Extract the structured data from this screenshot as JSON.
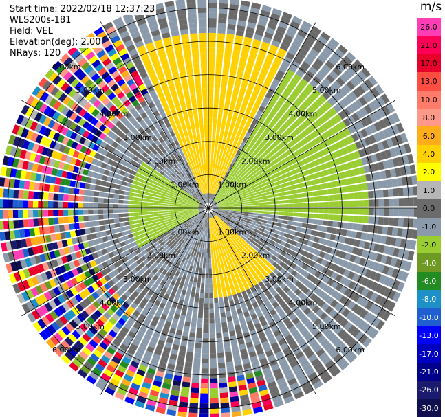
{
  "header": {
    "start_time": "Start time: 2022/02/18 12:37:23",
    "instrument": "WLS200s-181",
    "field": "Field: VEL",
    "elevation": "Elevation(deg): 2.00",
    "nrays": "NRays: 120"
  },
  "chart_data": {
    "type": "heatmap",
    "projection": "polar-ppi",
    "field": "VEL",
    "units": "m/s",
    "n_rays": 120,
    "elevation_deg": 2.0,
    "max_range_km": 6.25,
    "range_rings_km": [
      1.0,
      2.0,
      3.0,
      4.0,
      5.0,
      6.0
    ],
    "ring_labels": [
      "1.00km",
      "2.00km",
      "3.00km",
      "4.00km",
      "5.00km",
      "6.00km"
    ],
    "spoke_count": 12,
    "colorbar": {
      "title": "m/s",
      "bins": [
        {
          "label": "26.0",
          "color": "#ff3eb5"
        },
        {
          "label": "21.0",
          "color": "#ff0057"
        },
        {
          "label": "17.0",
          "color": "#e8002b"
        },
        {
          "label": "13.0",
          "color": "#ff4d41"
        },
        {
          "label": "10.0",
          "color": "#ff7b6a"
        },
        {
          "label": "8.0",
          "color": "#ff9a8a"
        },
        {
          "label": "6.0",
          "color": "#ffad1a"
        },
        {
          "label": "4.0",
          "color": "#ffd100"
        },
        {
          "label": "2.0",
          "color": "#ffff00"
        },
        {
          "label": "1.0",
          "color": "#b6b6b6"
        },
        {
          "label": "0.0",
          "color": "#6b6b6b"
        },
        {
          "label": "-1.0",
          "color": "#8a9aab"
        },
        {
          "label": "-2.0",
          "color": "#9acd32"
        },
        {
          "label": "-4.0",
          "color": "#6e9a23"
        },
        {
          "label": "-6.0",
          "color": "#228b22"
        },
        {
          "label": "-8.0",
          "color": "#1e90c8"
        },
        {
          "label": "-10.0",
          "color": "#1f5fd0"
        },
        {
          "label": "-13.0",
          "color": "#0000ff"
        },
        {
          "label": "-17.0",
          "color": "#0000c0"
        },
        {
          "label": "-21.0",
          "color": "#00008b"
        },
        {
          "label": "-26.0",
          "color": "#1a1a6e"
        },
        {
          "label": "-30.0",
          "color": "#101050"
        }
      ]
    },
    "sectors": [
      {
        "az_from": 335,
        "az_to": 25,
        "r_from_km": 0.4,
        "r_to_km": 5.1,
        "value": 4.0
      },
      {
        "az_from": 28,
        "az_to": 95,
        "r_from_km": 0.3,
        "r_to_km": 4.7,
        "value": -2.0
      },
      {
        "az_from": 130,
        "az_to": 175,
        "r_from_km": 0.2,
        "r_to_km": 2.6,
        "value": 4.0
      },
      {
        "az_from": 240,
        "az_to": 305,
        "r_from_km": 0.2,
        "r_to_km": 2.3,
        "value": -2.0
      },
      {
        "az_from": 45,
        "az_to": 75,
        "r_from_km": 2.0,
        "r_to_km": 3.5,
        "value": -4.0
      }
    ],
    "noise_az_from": 215,
    "noise_az_to": 330,
    "noise_r_from_km": 3.6,
    "noise_south_from": 160,
    "noise_south_to": 215,
    "noise_south_r_from_km": 5.0
  }
}
